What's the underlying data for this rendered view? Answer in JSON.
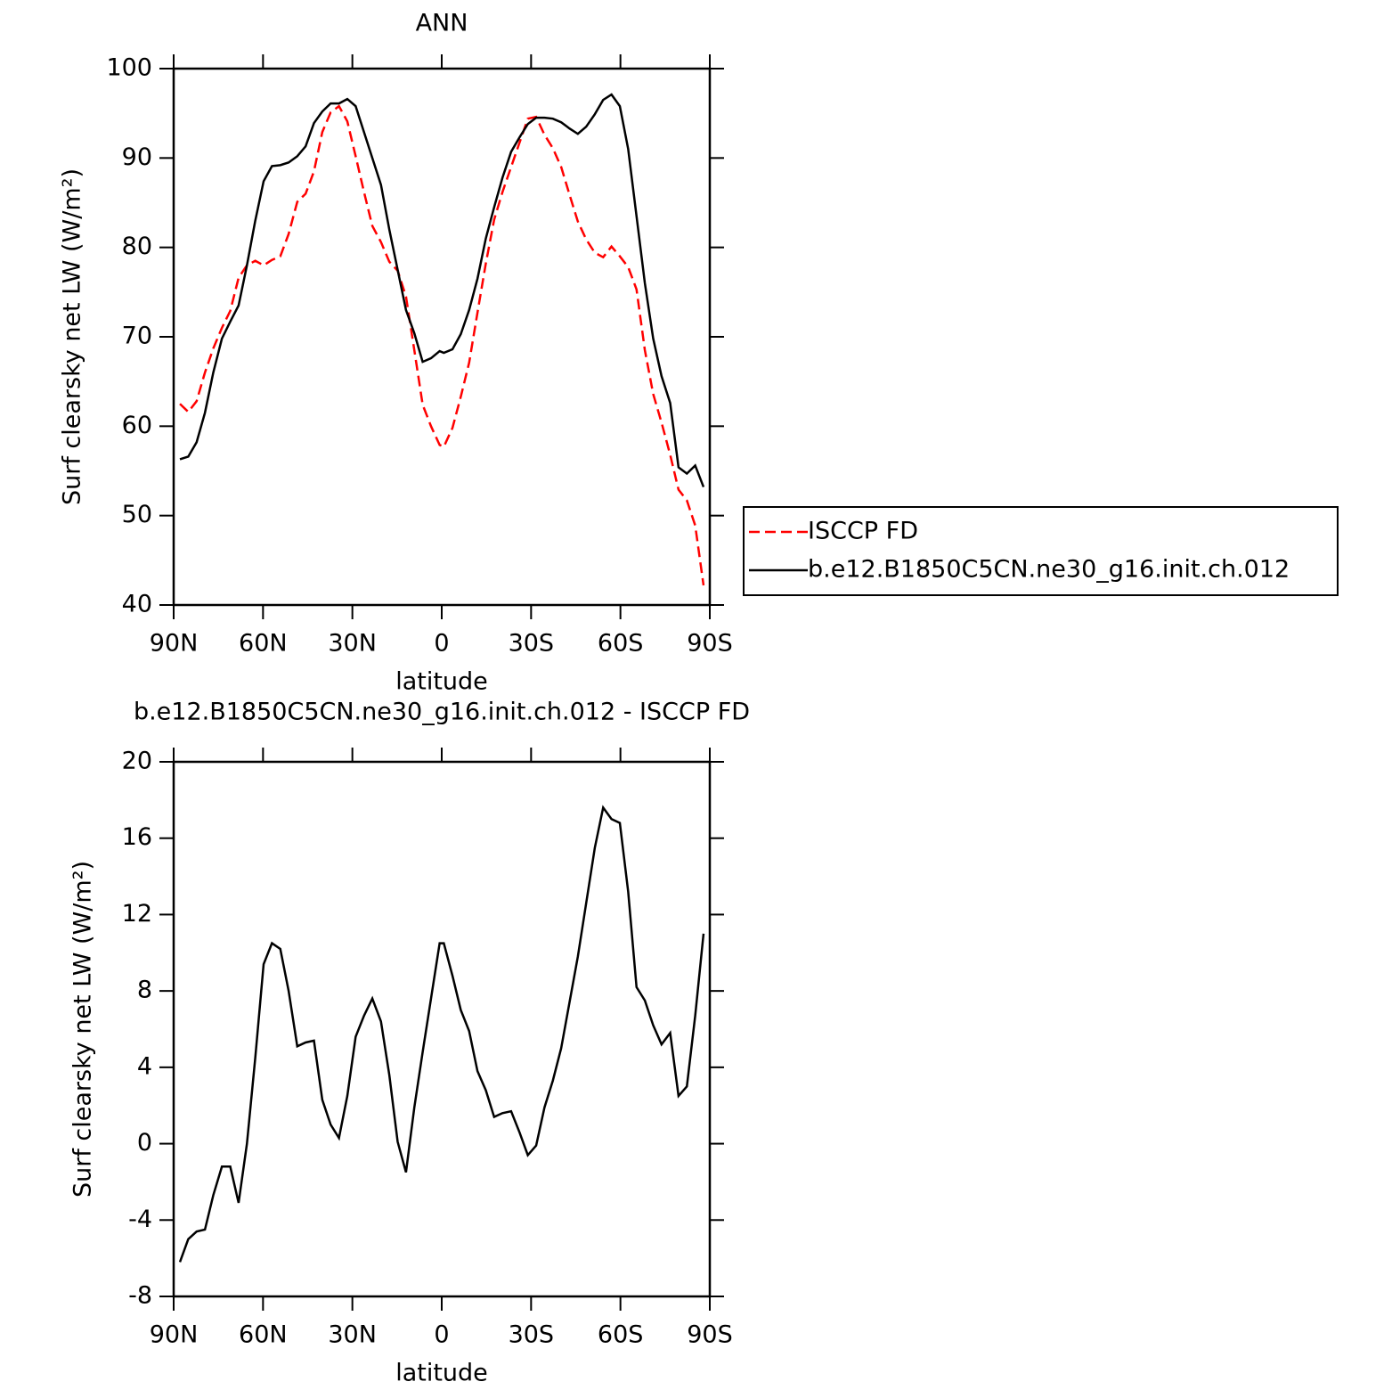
{
  "chart_data": [
    {
      "type": "line",
      "title": "ANN",
      "x_label": "latitude",
      "y_label": "Surf clearsky net LW (W/m²)",
      "x": [
        87.9,
        85.1,
        82.3,
        79.5,
        76.7,
        73.8,
        71.0,
        68.2,
        65.4,
        62.6,
        59.8,
        57.0,
        54.2,
        51.4,
        48.5,
        45.7,
        42.9,
        40.1,
        37.3,
        34.5,
        31.7,
        28.9,
        26.1,
        23.3,
        20.4,
        17.6,
        14.8,
        12.0,
        9.2,
        6.4,
        3.6,
        0.7,
        -0.7,
        -3.6,
        -6.4,
        -9.2,
        -12.0,
        -14.8,
        -17.6,
        -20.4,
        -23.3,
        -26.1,
        -28.9,
        -31.7,
        -34.5,
        -37.3,
        -40.1,
        -42.9,
        -45.7,
        -48.5,
        -51.4,
        -54.2,
        -57.0,
        -59.8,
        -62.6,
        -65.4,
        -68.2,
        -71.0,
        -73.8,
        -76.7,
        -79.5,
        -82.3,
        -85.1,
        -87.9
      ],
      "series": [
        {
          "name": "ISCCP FD",
          "color": "#ff0000",
          "style": "dashed",
          "values": [
            62.5,
            61.6,
            62.8,
            66,
            68.7,
            71,
            72.9,
            76.6,
            78,
            78.5,
            78,
            78.6,
            79,
            81.5,
            85.1,
            86,
            88.5,
            92.9,
            95.1,
            95.8,
            94.1,
            90.2,
            86.2,
            82.4,
            80.6,
            78.4,
            77.4,
            74.5,
            68.5,
            62.4,
            60,
            57.9,
            57.7,
            59.8,
            63.3,
            67.1,
            72.7,
            78.2,
            83.1,
            86.2,
            89,
            91.7,
            94.4,
            94.6,
            92.6,
            91.1,
            89,
            85.9,
            82.9,
            80.9,
            79.4,
            78.9,
            80.1,
            79,
            77.8,
            75.3,
            68.5,
            63.6,
            60.4,
            56.8,
            52.9,
            51.7,
            48.9,
            42.2
          ]
        },
        {
          "name": "b.e12.B1850C5CN.ne30_g16.init.ch.012",
          "color": "#000000",
          "style": "solid",
          "values": [
            56.3,
            56.6,
            58.2,
            61.5,
            66,
            69.8,
            71.7,
            73.5,
            78,
            83,
            87.4,
            89.1,
            89.2,
            89.5,
            90.2,
            91.3,
            93.9,
            95.2,
            96.1,
            96.1,
            96.6,
            95.8,
            92.9,
            90,
            87,
            82,
            77.5,
            73,
            70.4,
            67.2,
            67.6,
            68.4,
            68.2,
            68.6,
            70.3,
            73,
            76.5,
            81,
            84.5,
            87.8,
            90.7,
            92.3,
            93.8,
            94.5,
            94.5,
            94.4,
            94,
            93.3,
            92.7,
            93.5,
            94.9,
            96.5,
            97.1,
            95.8,
            91,
            83.5,
            76,
            69.8,
            65.6,
            62.6,
            55.4,
            54.7,
            55.6,
            53.2
          ]
        }
      ],
      "xlim": [
        90,
        -90
      ],
      "xticks": [
        {
          "value": 90,
          "label": "90N"
        },
        {
          "value": 60,
          "label": "60N"
        },
        {
          "value": 30,
          "label": "30N"
        },
        0,
        {
          "value": -30,
          "label": "30S"
        },
        {
          "value": -60,
          "label": "60S"
        },
        {
          "value": -90,
          "label": "90S"
        }
      ],
      "ylim": [
        40,
        100
      ],
      "yticks": [
        40,
        50,
        60,
        70,
        80,
        90,
        100
      ],
      "legend": "right"
    },
    {
      "type": "line",
      "title": "b.e12.B1850C5CN.ne30_g16.init.ch.012 - ISCCP FD",
      "x_label": "latitude",
      "y_label": "Surf clearsky net LW (W/m²)",
      "x": [
        87.9,
        85.1,
        82.3,
        79.5,
        76.7,
        73.8,
        71.0,
        68.2,
        65.4,
        62.6,
        59.8,
        57.0,
        54.2,
        51.4,
        48.5,
        45.7,
        42.9,
        40.1,
        37.3,
        34.5,
        31.7,
        28.9,
        26.1,
        23.3,
        20.4,
        17.6,
        14.8,
        12.0,
        9.2,
        6.4,
        3.6,
        0.7,
        -0.7,
        -3.6,
        -6.4,
        -9.2,
        -12.0,
        -14.8,
        -17.6,
        -20.4,
        -23.3,
        -26.1,
        -28.9,
        -31.7,
        -34.5,
        -37.3,
        -40.1,
        -42.9,
        -45.7,
        -48.5,
        -51.4,
        -54.2,
        -57.0,
        -59.8,
        -62.6,
        -65.4,
        -68.2,
        -71.0,
        -73.8,
        -76.7,
        -79.5,
        -82.3,
        -85.1,
        -87.9
      ],
      "series": [
        {
          "color": "#000000",
          "style": "solid",
          "values": [
            -6.2,
            -5,
            -4.6,
            -4.5,
            -2.7,
            -1.2,
            -1.2,
            -3.1,
            0,
            4.5,
            9.4,
            10.5,
            10.2,
            8,
            5.1,
            5.3,
            5.4,
            2.3,
            1,
            0.3,
            2.5,
            5.6,
            6.7,
            7.6,
            6.4,
            3.6,
            0.1,
            -1.5,
            1.9,
            4.8,
            7.6,
            10.5,
            10.5,
            8.8,
            7,
            5.9,
            3.8,
            2.8,
            1.4,
            1.6,
            1.7,
            0.6,
            -0.6,
            -0.1,
            1.9,
            3.3,
            5,
            7.4,
            9.8,
            12.6,
            15.5,
            17.6,
            17,
            16.8,
            13.2,
            8.2,
            7.5,
            6.2,
            5.2,
            5.8,
            2.5,
            3,
            6.7,
            11
          ]
        }
      ],
      "xlim": [
        90,
        -90
      ],
      "xticks": [
        {
          "value": 90,
          "label": "90N"
        },
        {
          "value": 60,
          "label": "60N"
        },
        {
          "value": 30,
          "label": "30N"
        },
        0,
        {
          "value": -30,
          "label": "30S"
        },
        {
          "value": -60,
          "label": "60S"
        },
        {
          "value": -90,
          "label": "90S"
        }
      ],
      "ylim": [
        -8,
        20
      ],
      "yticks": [
        -8,
        -4,
        0,
        4,
        8,
        12,
        16,
        20
      ]
    }
  ]
}
